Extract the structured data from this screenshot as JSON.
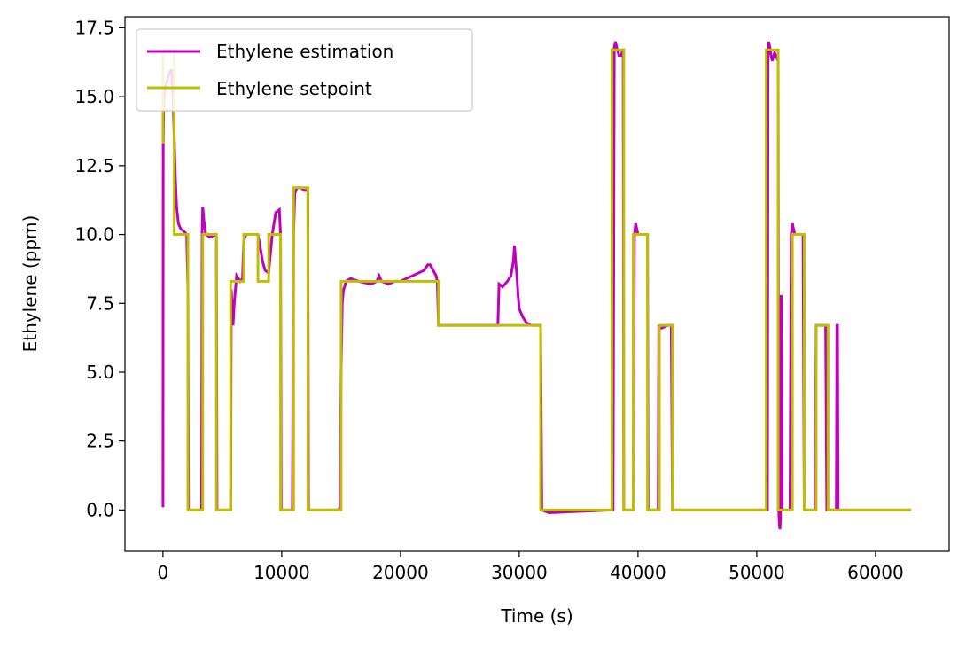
{
  "chart_data": {
    "type": "line",
    "xlabel": "Time (s)",
    "ylabel": "Ethylene (ppm)",
    "xlim": [
      -3200,
      66200
    ],
    "ylim": [
      -1.5,
      17.9
    ],
    "xticks": [
      0,
      10000,
      20000,
      30000,
      40000,
      50000,
      60000
    ],
    "yticks": [
      0.0,
      2.5,
      5.0,
      7.5,
      10.0,
      12.5,
      15.0,
      17.5
    ],
    "xtick_labels": [
      "0",
      "10000",
      "20000",
      "30000",
      "40000",
      "50000",
      "60000"
    ],
    "ytick_labels": [
      "0.0",
      "2.5",
      "5.0",
      "7.5",
      "10.0",
      "12.5",
      "15.0",
      "17.5"
    ],
    "grid": false,
    "legend_position": "top-left",
    "series": [
      {
        "name": "Ethylene estimation",
        "color": "#bf00bf",
        "x": [
          0,
          20,
          60,
          150,
          300,
          500,
          700,
          850,
          950,
          1050,
          1150,
          1300,
          1500,
          1800,
          2000,
          2100,
          2150,
          2300,
          3000,
          3250,
          3300,
          3350,
          3450,
          3600,
          4000,
          4400,
          4500,
          4550,
          5000,
          5500,
          5700,
          5750,
          5900,
          6000,
          6200,
          6500,
          6700,
          6800,
          7000,
          7500,
          8000,
          8200,
          8400,
          8600,
          8900,
          9200,
          9500,
          9800,
          9900,
          9950,
          10500,
          10900,
          11000,
          11100,
          11300,
          11600,
          11900,
          12200,
          12250,
          12400,
          14800,
          14900,
          15000,
          15100,
          15200,
          15300,
          15400,
          15800,
          16500,
          17500,
          18000,
          18200,
          18400,
          19000,
          19500,
          20000,
          20500,
          21000,
          21500,
          22000,
          22300,
          22500,
          23000,
          23100,
          23200,
          23300,
          24000,
          25000,
          26000,
          27000,
          28000,
          28200,
          28300,
          28600,
          29000,
          29300,
          29500,
          29600,
          29700,
          29800,
          29900,
          30000,
          30300,
          30600,
          31000,
          31500,
          31700,
          31800,
          31900,
          32500,
          37800,
          37900,
          38000,
          38100,
          38200,
          38400,
          38600,
          38700,
          38750,
          38800,
          39500,
          39600,
          39700,
          39800,
          40000,
          40200,
          40400,
          40800,
          40850,
          40900,
          41700,
          41750,
          41800,
          42000,
          42500,
          42800,
          42900,
          43000,
          45000,
          50000,
          50900,
          50950,
          51000,
          51100,
          51200,
          51300,
          51500,
          51700,
          51800,
          51850,
          51900,
          51950,
          52000,
          52050,
          52100,
          52150,
          52300,
          52500,
          52700,
          52800,
          52900,
          53000,
          53200,
          53600,
          53900,
          54000,
          54500,
          54900,
          55000,
          55200,
          55600,
          55800,
          55900,
          56700,
          56750,
          56800,
          56850,
          58000,
          60000,
          63000
        ],
        "values": [
          0.1,
          13.2,
          14.8,
          15.2,
          15.5,
          15.8,
          16.0,
          15.0,
          13.5,
          12.0,
          11.0,
          10.4,
          10.2,
          10.1,
          10.0,
          8.0,
          0.0,
          0.0,
          0.0,
          0.0,
          10.1,
          11.0,
          10.5,
          10.0,
          9.9,
          10.0,
          9.9,
          0.0,
          0.0,
          0.0,
          0.0,
          8.0,
          6.7,
          7.5,
          8.5,
          8.3,
          8.4,
          9.8,
          10.0,
          10.0,
          10.0,
          9.5,
          9.0,
          8.7,
          8.6,
          10.0,
          10.8,
          10.9,
          10.0,
          0.0,
          0.0,
          0.0,
          10.0,
          11.5,
          11.7,
          11.7,
          11.6,
          11.6,
          0.0,
          0.0,
          0.0,
          0.1,
          5.0,
          7.5,
          8.0,
          8.1,
          8.3,
          8.4,
          8.3,
          8.2,
          8.3,
          8.5,
          8.3,
          8.2,
          8.3,
          8.3,
          8.4,
          8.5,
          8.6,
          8.7,
          8.9,
          8.9,
          8.5,
          8.3,
          6.7,
          6.7,
          6.7,
          6.7,
          6.7,
          6.7,
          6.7,
          6.7,
          8.2,
          8.1,
          8.3,
          8.5,
          9.0,
          9.6,
          9.0,
          8.5,
          7.8,
          7.3,
          7.0,
          6.8,
          6.7,
          6.7,
          6.7,
          6.7,
          0.0,
          -0.1,
          0.0,
          0.0,
          16.8,
          17.0,
          16.8,
          16.5,
          16.5,
          16.7,
          16.7,
          0.0,
          0.0,
          0.0,
          10.0,
          10.4,
          10.0,
          10.0,
          10.0,
          10.0,
          0.0,
          0.0,
          0.0,
          6.7,
          6.6,
          6.6,
          6.7,
          6.7,
          0.0,
          0.0,
          0.0,
          0.0,
          0.0,
          16.5,
          17.0,
          16.8,
          16.5,
          16.3,
          16.6,
          16.4,
          16.5,
          0.0,
          -0.5,
          -0.7,
          -0.3,
          7.8,
          7.5,
          0.0,
          0.0,
          0.0,
          0.0,
          0.0,
          10.0,
          10.4,
          10.0,
          10.0,
          10.0,
          0.0,
          0.0,
          0.0,
          6.7,
          6.7,
          6.7,
          6.7,
          0.0,
          0.0,
          6.7,
          6.7,
          0.0,
          0.0,
          0.0,
          0.0
        ]
      },
      {
        "name": "Ethylene setpoint",
        "color": "#bfbf00",
        "x": [
          0,
          0,
          950,
          950,
          2100,
          2100,
          3350,
          3350,
          4500,
          4500,
          5700,
          5700,
          6800,
          6800,
          8000,
          8000,
          8900,
          8900,
          9900,
          9900,
          11000,
          11000,
          12200,
          12200,
          15000,
          15000,
          23200,
          23200,
          31800,
          31800,
          37800,
          37800,
          38800,
          38800,
          39600,
          39600,
          40800,
          40800,
          41800,
          41800,
          42900,
          42900,
          50800,
          50800,
          51800,
          51800,
          53000,
          53000,
          54000,
          54000,
          55000,
          55000,
          56000,
          56000,
          63000
        ],
        "values": [
          13.3,
          16.7,
          16.7,
          10.0,
          10.0,
          0.0,
          0.0,
          10.0,
          10.0,
          0.0,
          0.0,
          8.3,
          8.3,
          10.0,
          10.0,
          8.3,
          8.3,
          10.0,
          10.0,
          0.0,
          0.0,
          11.7,
          11.7,
          0.0,
          0.0,
          8.3,
          8.3,
          6.7,
          6.7,
          0.0,
          0.0,
          16.7,
          16.7,
          0.0,
          0.0,
          10.0,
          10.0,
          0.0,
          0.0,
          6.7,
          6.7,
          0.0,
          0.0,
          16.7,
          16.7,
          0.0,
          0.0,
          10.0,
          10.0,
          0.0,
          0.0,
          6.7,
          6.7,
          0.0,
          0.0
        ]
      }
    ]
  }
}
